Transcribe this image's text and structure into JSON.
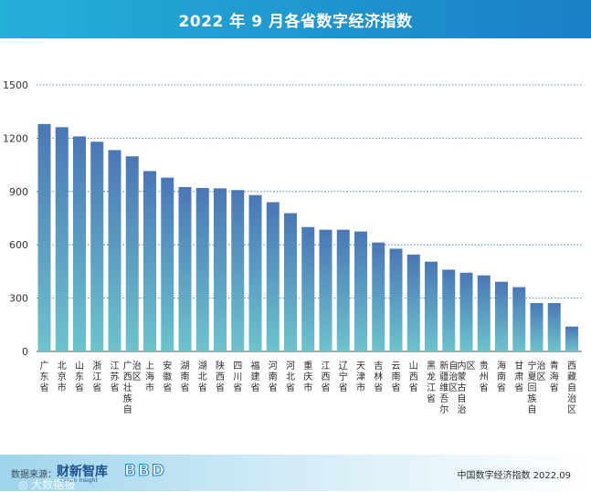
{
  "header": {
    "title": "2022 年 9 月各省数字经济指数"
  },
  "chart_data": {
    "type": "bar",
    "title": "2022 年 9 月各省数字经济指数",
    "xlabel": "",
    "ylabel": "",
    "ylim": [
      0,
      1500
    ],
    "yticks": [
      "0",
      "300",
      "600",
      "900",
      "1200",
      "1500"
    ],
    "grid": true,
    "categories": [
      "广东省",
      "北京市",
      "山东省",
      "浙江省",
      "江苏省",
      "广西壮族自治区",
      "上海市",
      "安徽省",
      "湖南省",
      "湖北省",
      "陕西省",
      "四川省",
      "福建省",
      "河南省",
      "河北省",
      "重庆市",
      "江西省",
      "辽宁省",
      "天津市",
      "吉林省",
      "云南省",
      "山西省",
      "黑龙江省",
      "新疆维吾尔自治区",
      "内蒙古自治区",
      "贵州省",
      "海南省",
      "甘肃省",
      "宁夏回族自治区",
      "青海省",
      "西藏自治区"
    ],
    "values": [
      1280,
      1262,
      1210,
      1180,
      1133,
      1098,
      1015,
      978,
      925,
      920,
      918,
      908,
      880,
      840,
      778,
      700,
      685,
      685,
      675,
      613,
      578,
      545,
      505,
      460,
      443,
      428,
      392,
      362,
      272,
      272,
      140
    ]
  },
  "footer": {
    "source_label": "数据来源：",
    "brand_primary": "财新智库",
    "brand_primary_sub": "Caixin Insight",
    "brand_secondary": "BBD",
    "watermark": "◎ 大数据报",
    "note": "中国数字经济指数 2022.09"
  },
  "colors": {
    "bar_top": "#4a77b6",
    "bar_bottom": "#6cc3cd",
    "grid": "#2b6cb0"
  }
}
